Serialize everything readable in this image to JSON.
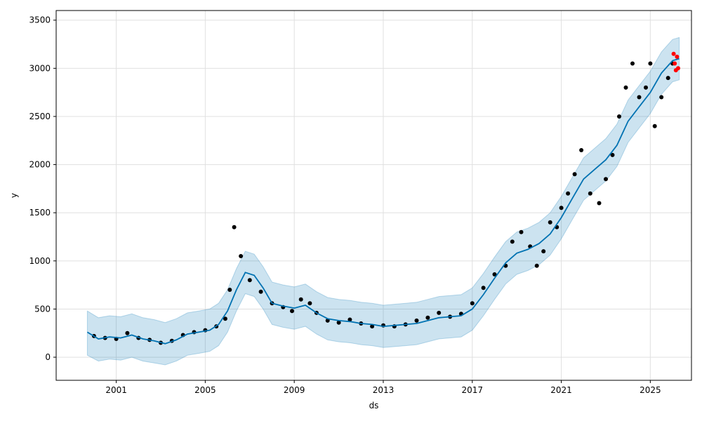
{
  "chart_data": {
    "type": "line",
    "title": "",
    "xlabel": "ds",
    "ylabel": "y",
    "xlim": [
      1998.3,
      2026.85
    ],
    "ylim": [
      -240,
      3600
    ],
    "x_ticks": [
      2001,
      2005,
      2009,
      2013,
      2017,
      2021,
      2025
    ],
    "x_tick_labels": [
      "2001",
      "2005",
      "2009",
      "2013",
      "2017",
      "2021",
      "2025"
    ],
    "y_ticks": [
      0,
      500,
      1000,
      1500,
      2000,
      2500,
      3000,
      3500
    ],
    "y_tick_labels": [
      "0",
      "500",
      "1000",
      "1500",
      "2000",
      "2500",
      "3000",
      "3500"
    ],
    "grid": true,
    "colors": {
      "history": "#000000",
      "forecast_line": "#0072B2",
      "uncertainty_band": "#0072B2",
      "recent": "#ff0000"
    },
    "series": [
      {
        "kind": "scatter",
        "x": [
          2000.0,
          2000.5,
          2001.0,
          2001.5,
          2002.0,
          2002.5,
          2003.0,
          2003.5,
          2004.0,
          2004.5,
          2005.0,
          2005.5,
          2005.9,
          2006.1,
          2006.3,
          2006.6,
          2007.0,
          2007.5,
          2008.0,
          2008.5,
          2008.9,
          2009.3,
          2009.7,
          2010.0,
          2010.5,
          2011.0,
          2011.5,
          2012.0,
          2012.5,
          2013.0,
          2013.5,
          2014.0,
          2014.5,
          2015.0,
          2015.5,
          2016.0,
          2016.5,
          2017.0,
          2017.5,
          2018.0,
          2018.5,
          2018.8,
          2019.2,
          2019.6,
          2019.9,
          2020.2,
          2020.5,
          2020.8,
          2021.0,
          2021.3,
          2021.6,
          2021.9,
          2022.3,
          2022.7,
          2023.0,
          2023.3,
          2023.6,
          2023.9,
          2024.2,
          2024.5,
          2024.8,
          2025.0,
          2025.2,
          2025.5,
          2025.8,
          2026.0
        ],
        "y": [
          220,
          200,
          190,
          250,
          200,
          180,
          150,
          170,
          230,
          260,
          280,
          320,
          400,
          700,
          1350,
          1050,
          800,
          680,
          560,
          520,
          480,
          600,
          560,
          460,
          380,
          360,
          390,
          350,
          320,
          330,
          320,
          340,
          380,
          410,
          460,
          420,
          450,
          560,
          720,
          860,
          950,
          1200,
          1300,
          1150,
          950,
          1100,
          1400,
          1350,
          1550,
          1700,
          1900,
          2150,
          1700,
          1600,
          1850,
          2100,
          2500,
          2800,
          3050,
          2700,
          2800,
          3050,
          2400,
          2700,
          2900,
          3050
        ]
      },
      {
        "kind": "line",
        "x": [
          1999.7,
          2000.2,
          2000.7,
          2001.2,
          2001.7,
          2002.2,
          2002.7,
          2003.2,
          2003.7,
          2004.2,
          2004.7,
          2005.2,
          2005.6,
          2006.0,
          2006.4,
          2006.8,
          2007.2,
          2007.6,
          2008.0,
          2008.5,
          2009.0,
          2009.5,
          2010.0,
          2010.5,
          2011.0,
          2011.5,
          2012.0,
          2012.5,
          2013.0,
          2013.5,
          2014.0,
          2014.5,
          2015.0,
          2015.5,
          2016.0,
          2016.5,
          2017.0,
          2017.5,
          2018.0,
          2018.5,
          2019.0,
          2019.5,
          2020.0,
          2020.5,
          2021.0,
          2021.5,
          2022.0,
          2022.5,
          2023.0,
          2023.5,
          2024.0,
          2024.5,
          2025.0,
          2025.5,
          2026.0,
          2026.3
        ],
        "y": [
          260,
          190,
          210,
          200,
          230,
          190,
          170,
          140,
          180,
          240,
          260,
          280,
          340,
          480,
          700,
          880,
          850,
          720,
          560,
          530,
          510,
          540,
          460,
          400,
          380,
          370,
          350,
          340,
          320,
          330,
          340,
          350,
          380,
          410,
          420,
          430,
          500,
          650,
          820,
          980,
          1080,
          1120,
          1180,
          1280,
          1450,
          1650,
          1850,
          1950,
          2050,
          2200,
          2450,
          2600,
          2750,
          2950,
          3080,
          3100
        ]
      },
      {
        "kind": "band",
        "x": [
          1999.7,
          2000.2,
          2000.7,
          2001.2,
          2001.7,
          2002.2,
          2002.7,
          2003.2,
          2003.7,
          2004.2,
          2004.7,
          2005.2,
          2005.6,
          2006.0,
          2006.4,
          2006.8,
          2007.2,
          2007.6,
          2008.0,
          2008.5,
          2009.0,
          2009.5,
          2010.0,
          2010.5,
          2011.0,
          2011.5,
          2012.0,
          2012.5,
          2013.0,
          2013.5,
          2014.0,
          2014.5,
          2015.0,
          2015.5,
          2016.0,
          2016.5,
          2017.0,
          2017.5,
          2018.0,
          2018.5,
          2019.0,
          2019.5,
          2020.0,
          2020.5,
          2021.0,
          2021.5,
          2022.0,
          2022.5,
          2023.0,
          2023.5,
          2024.0,
          2024.5,
          2025.0,
          2025.5,
          2026.0,
          2026.3
        ],
        "lower": [
          20,
          -40,
          -20,
          -30,
          0,
          -40,
          -60,
          -80,
          -40,
          20,
          40,
          60,
          120,
          260,
          480,
          660,
          630,
          500,
          340,
          310,
          290,
          320,
          240,
          180,
          160,
          150,
          130,
          120,
          100,
          110,
          120,
          130,
          160,
          190,
          200,
          210,
          280,
          430,
          600,
          760,
          860,
          900,
          960,
          1060,
          1230,
          1430,
          1630,
          1730,
          1830,
          1980,
          2230,
          2380,
          2530,
          2730,
          2860,
          2880
        ],
        "upper": [
          480,
          410,
          430,
          420,
          450,
          410,
          390,
          360,
          400,
          460,
          480,
          500,
          560,
          700,
          920,
          1100,
          1070,
          940,
          780,
          750,
          730,
          760,
          680,
          620,
          600,
          590,
          570,
          560,
          540,
          550,
          560,
          570,
          600,
          630,
          640,
          650,
          720,
          870,
          1040,
          1200,
          1300,
          1340,
          1400,
          1500,
          1670,
          1870,
          2070,
          2170,
          2270,
          2420,
          2670,
          2820,
          2970,
          3170,
          3300,
          3320
        ]
      },
      {
        "kind": "scatter",
        "x": [
          2026.05,
          2026.1,
          2026.15,
          2026.2,
          2026.25
        ],
        "y": [
          3150,
          3050,
          2980,
          3120,
          3000
        ]
      }
    ]
  }
}
